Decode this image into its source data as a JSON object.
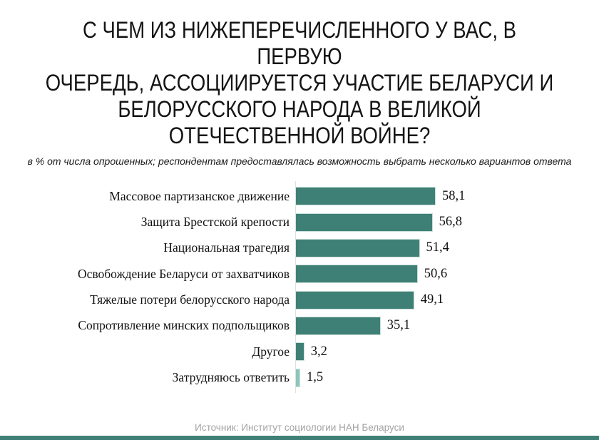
{
  "page": {
    "title_lines": [
      "С ЧЕМ ИЗ НИЖЕПЕРЕЧИСЛЕННОГО У ВАС, В ПЕРВУЮ",
      "ОЧЕРЕДЬ, АССОЦИИРУЕТСЯ УЧАСТИЕ БЕЛАРУСИ И",
      "БЕЛОРУССКОГО НАРОДА В  ВЕЛИКОЙ",
      "ОТЕЧЕСТВЕННОЙ ВОЙНЕ?"
    ],
    "subtitle": "в % от числа опрошенных; респондентам предоставлялась возможность выбрать несколько вариантов ответа",
    "source": "Источник: Институт социологии НАН Беларуси"
  },
  "chart_data": {
    "type": "bar",
    "orientation": "horizontal",
    "title": "С ЧЕМ ИЗ НИЖЕПЕРЕЧИСЛЕННОГО У ВАС, В ПЕРВУЮ ОЧЕРЕДЬ, АССОЦИИРУЕТСЯ УЧАСТИЕ БЕЛАРУСИ И БЕЛОРУССКОГО НАРОДА В ВЕЛИКОЙ ОТЕЧЕСТВЕННОЙ ВОЙНЕ?",
    "subtitle": "в % от числа опрошенных; респондентам предоставлялась возможность выбрать несколько вариантов ответа",
    "categories": [
      "Массовое партизанское движение",
      "Защита Брестской крепости",
      "Национальная трагедия",
      "Освобождение Беларуси от захватчиков",
      "Тяжелые потери белорусского народа",
      "Сопротивление минских подпольщиков",
      "Другое",
      "Затрудняюсь ответить"
    ],
    "values": [
      58.1,
      56.8,
      51.4,
      50.6,
      49.1,
      35.1,
      3.2,
      1.5
    ],
    "value_labels": [
      "58,1",
      "56,8",
      "51,4",
      "50,6",
      "49,1",
      "35,1",
      "3,2",
      "1,5"
    ],
    "unit": "%",
    "xlim": [
      0,
      60
    ],
    "grid": false,
    "legend": false,
    "source": "Источник: Институт социологии НАН Беларуси"
  },
  "colors": {
    "bar_color": "#3E8076",
    "bar_border": "#C9DFD9",
    "last_bar_color": "#8CC5BA",
    "last_bar_border": "#C9E4DE",
    "axis_line": "#D8E2DF",
    "title_text": "#141414",
    "label_text": "#111111",
    "source_text": "#A3A3A3",
    "footer_bar": "#3E8076",
    "background": "#FFFFFF"
  }
}
